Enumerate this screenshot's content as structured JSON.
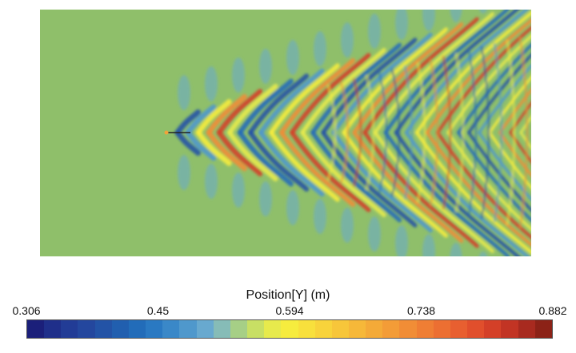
{
  "figure": {
    "background_color": "#8fbf6a"
  },
  "legend": {
    "title": "Position[Y] (m)",
    "ticks": [
      "0.306",
      "0.45",
      "0.594",
      "0.738",
      "0.882"
    ],
    "range": [
      0.306,
      0.882
    ],
    "colors": [
      "#1b1f7a",
      "#1f2f8a",
      "#223c96",
      "#24479e",
      "#2353a6",
      "#215faf",
      "#226cb9",
      "#2a79c2",
      "#3a88c8",
      "#4f98cc",
      "#68a9cf",
      "#86bcb7",
      "#a6cf86",
      "#c8df64",
      "#e7ea4c",
      "#f6ec3e",
      "#f8e03c",
      "#f8d33b",
      "#f7c63a",
      "#f6b839",
      "#f4aa38",
      "#f39c37",
      "#f18d36",
      "#ef7e34",
      "#ec6f32",
      "#e85f30",
      "#e14f2c",
      "#d44028",
      "#c23424",
      "#a82a1f",
      "#8c2217"
    ]
  }
}
